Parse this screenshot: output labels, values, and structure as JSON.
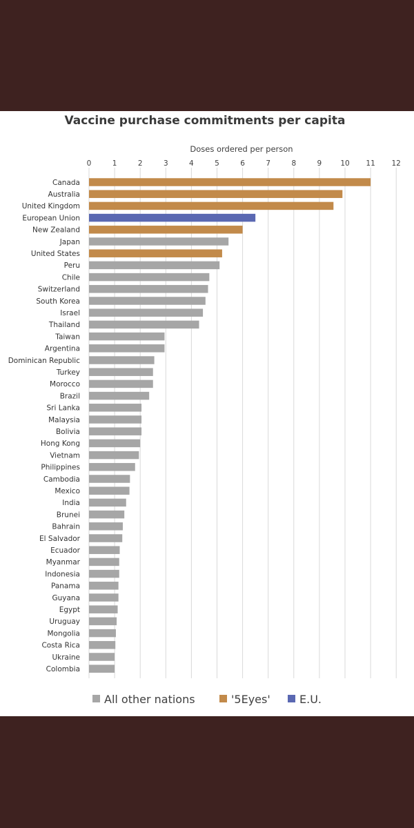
{
  "chart_data": {
    "type": "bar",
    "orientation": "horizontal",
    "title": "Vaccine purchase commitments per capita",
    "xlabel": "Doses ordered per person",
    "ylabel": "",
    "xlim": [
      0,
      12
    ],
    "ticks": [
      0,
      1,
      2,
      3,
      4,
      5,
      6,
      7,
      8,
      9,
      10,
      11,
      12
    ],
    "grid": true,
    "legend_position": "bottom",
    "colors": {
      "All other nations": "#a6a6a6",
      "'5Eyes'": "#c28a4a",
      "E.U.": "#5a68b2"
    },
    "legend": [
      "All other nations",
      "'5Eyes'",
      "E.U."
    ],
    "categories": [
      "Canada",
      "Australia",
      "United Kingdom",
      "European Union",
      "New Zealand",
      "Japan",
      "United States",
      "Peru",
      "Chile",
      "Switzerland",
      "South Korea",
      "Israel",
      "Thailand",
      "Taiwan",
      "Argentina",
      "Dominican Republic",
      "Turkey",
      "Morocco",
      "Brazil",
      "Sri Lanka",
      "Malaysia",
      "Bolivia",
      "Hong Kong",
      "Vietnam",
      "Philippines",
      "Cambodia",
      "Mexico",
      "India",
      "Brunei",
      "Bahrain",
      "El Salvador",
      "Ecuador",
      "Myanmar",
      "Indonesia",
      "Panama",
      "Guyana",
      "Egypt",
      "Uruguay",
      "Mongolia",
      "Costa Rica",
      "Ukraine",
      "Colombia"
    ],
    "values": [
      11.0,
      9.9,
      9.55,
      6.5,
      6.0,
      5.45,
      5.2,
      5.1,
      4.7,
      4.65,
      4.55,
      4.45,
      4.3,
      2.95,
      2.95,
      2.55,
      2.5,
      2.5,
      2.35,
      2.05,
      2.05,
      2.05,
      2.0,
      1.95,
      1.8,
      1.6,
      1.58,
      1.45,
      1.38,
      1.32,
      1.3,
      1.2,
      1.18,
      1.18,
      1.15,
      1.15,
      1.12,
      1.08,
      1.05,
      1.03,
      1.0,
      1.0
    ],
    "groups": [
      "'5Eyes'",
      "'5Eyes'",
      "'5Eyes'",
      "E.U.",
      "'5Eyes'",
      "All other nations",
      "'5Eyes'",
      "All other nations",
      "All other nations",
      "All other nations",
      "All other nations",
      "All other nations",
      "All other nations",
      "All other nations",
      "All other nations",
      "All other nations",
      "All other nations",
      "All other nations",
      "All other nations",
      "All other nations",
      "All other nations",
      "All other nations",
      "All other nations",
      "All other nations",
      "All other nations",
      "All other nations",
      "All other nations",
      "All other nations",
      "All other nations",
      "All other nations",
      "All other nations",
      "All other nations",
      "All other nations",
      "All other nations",
      "All other nations",
      "All other nations",
      "All other nations",
      "All other nations",
      "All other nations",
      "All other nations",
      "All other nations",
      "All other nations"
    ]
  }
}
